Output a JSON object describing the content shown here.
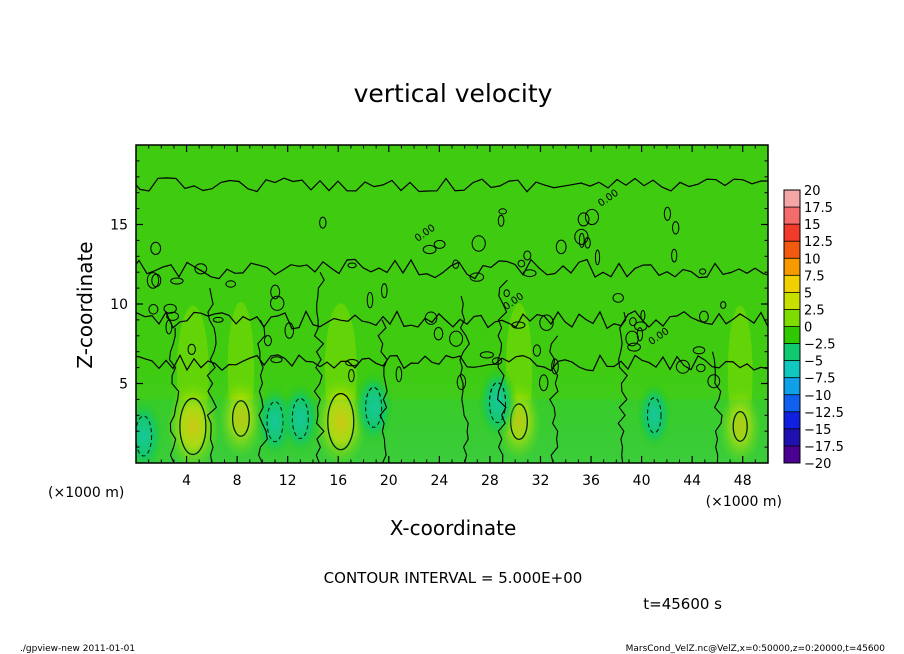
{
  "chart_data": {
    "type": "heatmap",
    "title": "vertical velocity",
    "xlabel": "X-coordinate",
    "ylabel": "Z-coordinate",
    "x_unit_left": "(×1000 m)",
    "x_unit_right": "(×1000 m)",
    "xlim": [
      0,
      50
    ],
    "ylim": [
      0,
      20
    ],
    "x_ticks": [
      4,
      8,
      12,
      16,
      20,
      24,
      28,
      32,
      36,
      40,
      44,
      48
    ],
    "y_ticks": [
      5,
      10,
      15
    ],
    "contour_interval_text": "CONTOUR INTERVAL = 5.000E+00",
    "contour_labels": [
      "0.00",
      "0.00",
      "0.00",
      "0.00"
    ],
    "time_text": "t=45600 s",
    "colorbar": {
      "levels": [
        20,
        17.5,
        15,
        12.5,
        10,
        7.5,
        5,
        2.5,
        0,
        -2.5,
        -5,
        -7.5,
        -10,
        -12.5,
        -15,
        -17.5,
        -20
      ],
      "labels": [
        "20",
        "17.5",
        "15",
        "12.5",
        "10",
        "7.5",
        "5",
        "2.5",
        "0",
        "−2.5",
        "−5",
        "−7.5",
        "−10",
        "−12.5",
        "−15",
        "−17.5",
        "−20"
      ],
      "colors": [
        "#f4a6a6",
        "#f46b6b",
        "#f23a2a",
        "#f25a10",
        "#f79a00",
        "#f0d000",
        "#c8e000",
        "#7fdc00",
        "#30c800",
        "#10c870",
        "#10c8c0",
        "#10a0e8",
        "#1060f0",
        "#1020e0",
        "#2010b0",
        "#4a0090"
      ]
    },
    "updrafts": [
      {
        "x": 4.5,
        "z": 2.3,
        "peak": 7.5
      },
      {
        "x": 8.3,
        "z": 2.8,
        "peak": 4
      },
      {
        "x": 16.2,
        "z": 2.6,
        "peak": 7.5
      },
      {
        "x": 30.3,
        "z": 2.6,
        "peak": 4
      },
      {
        "x": 47.8,
        "z": 2.3,
        "peak": 3
      }
    ],
    "downdrafts": [
      {
        "x": 0.6,
        "z": 1.7,
        "peak": -5
      },
      {
        "x": 11,
        "z": 2.6,
        "peak": -5
      },
      {
        "x": 13,
        "z": 2.8,
        "peak": -5
      },
      {
        "x": 18.8,
        "z": 3.5,
        "peak": -5
      },
      {
        "x": 28.6,
        "z": 3.8,
        "peak": -5
      },
      {
        "x": 41,
        "z": 3,
        "peak": -3
      }
    ]
  },
  "footer": {
    "left": "./gpview-new   2011-01-01",
    "right": "MarsCond_VelZ.nc@VelZ,x=0:50000,z=0:20000,t=45600"
  }
}
